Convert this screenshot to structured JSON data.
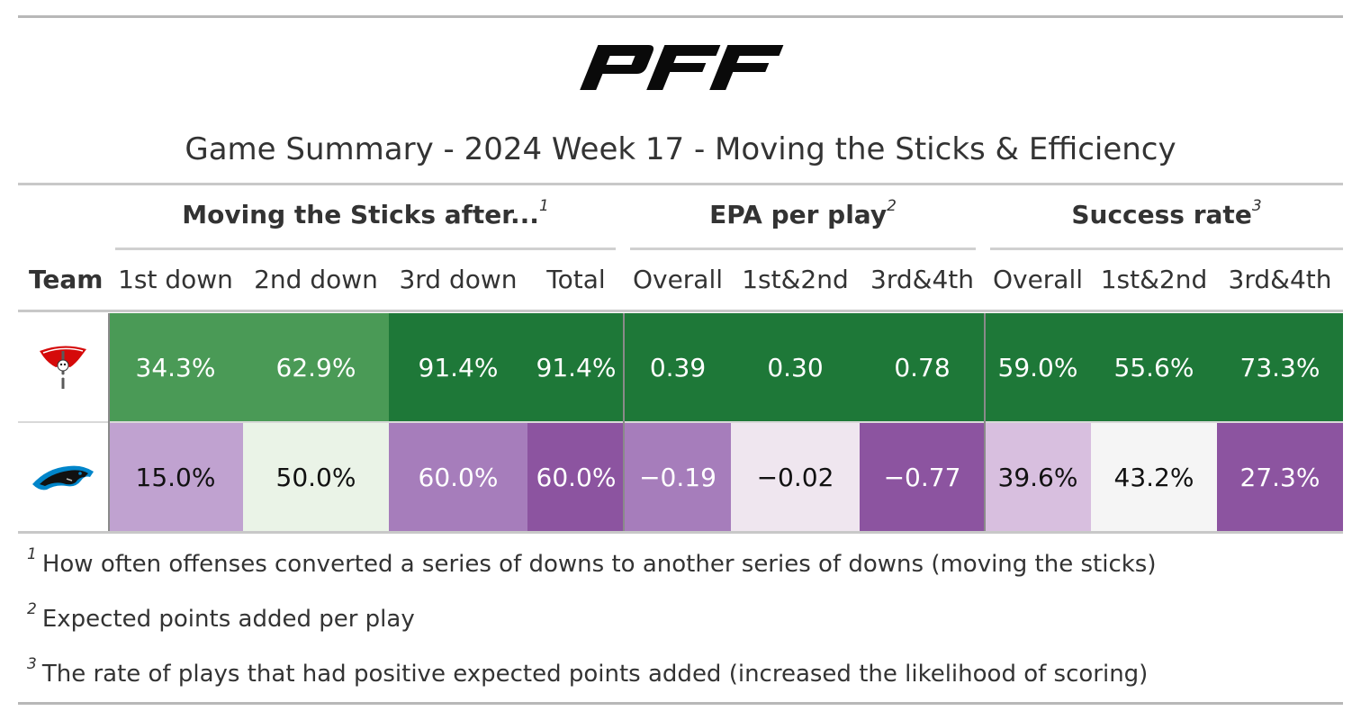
{
  "brand": {
    "logo_text": "PFF"
  },
  "title": "Game Summary - 2024 Week 17 - Moving the Sticks & Efficiency",
  "groups": [
    {
      "label": "Moving the Sticks after...",
      "footnote": "1"
    },
    {
      "label": "EPA per play",
      "footnote": "2"
    },
    {
      "label": "Success rate",
      "footnote": "3"
    }
  ],
  "columns": [
    "Team",
    "1st down",
    "2nd down",
    "3rd down",
    "Total",
    "Overall",
    "1st&2nd",
    "3rd&4th",
    "Overall",
    "1st&2nd",
    "3rd&4th"
  ],
  "chart_data": {
    "type": "table",
    "title": "Game Summary - 2024 Week 17 - Moving the Sticks & Efficiency",
    "rows": [
      {
        "team_logo": "tampa-bay-buccaneers-logo",
        "display": [
          "34.3%",
          "62.9%",
          "91.4%",
          "91.4%",
          "0.39",
          "0.30",
          "0.78",
          "59.0%",
          "55.6%",
          "73.3%"
        ],
        "values": [
          34.3,
          62.9,
          91.4,
          91.4,
          0.39,
          0.3,
          0.78,
          59.0,
          55.6,
          73.3
        ],
        "colors": [
          "#4a9a56",
          "#4a9a56",
          "#1e7838",
          "#1e7838",
          "#1e7838",
          "#1e7838",
          "#1e7838",
          "#1e7838",
          "#1e7838",
          "#1e7838"
        ],
        "text_colors": [
          "#ffffff",
          "#ffffff",
          "#ffffff",
          "#ffffff",
          "#ffffff",
          "#ffffff",
          "#ffffff",
          "#ffffff",
          "#ffffff",
          "#ffffff"
        ]
      },
      {
        "team_logo": "carolina-panthers-logo",
        "display": [
          "15.0%",
          "50.0%",
          "60.0%",
          "60.0%",
          "−0.19",
          "−0.02",
          "−0.77",
          "39.6%",
          "43.2%",
          "27.3%"
        ],
        "values": [
          15.0,
          50.0,
          60.0,
          60.0,
          -0.19,
          -0.02,
          -0.77,
          39.6,
          43.2,
          27.3
        ],
        "colors": [
          "#c0a2d0",
          "#eaf3e7",
          "#a67dbb",
          "#8c54a0",
          "#a67dbb",
          "#efe6ef",
          "#8c54a0",
          "#d8bfdf",
          "#f5f5f5",
          "#8c54a0"
        ],
        "text_colors": [
          "#111111",
          "#111111",
          "#ffffff",
          "#ffffff",
          "#ffffff",
          "#111111",
          "#ffffff",
          "#111111",
          "#111111",
          "#ffffff"
        ]
      }
    ]
  },
  "footnotes": [
    {
      "mark": "1",
      "text": "How often offenses converted a series of downs to another series of downs (moving the sticks)"
    },
    {
      "mark": "2",
      "text": "Expected points added per play"
    },
    {
      "mark": "3",
      "text": "The rate of plays that had positive expected points added (increased the likelihood of scoring)"
    }
  ]
}
